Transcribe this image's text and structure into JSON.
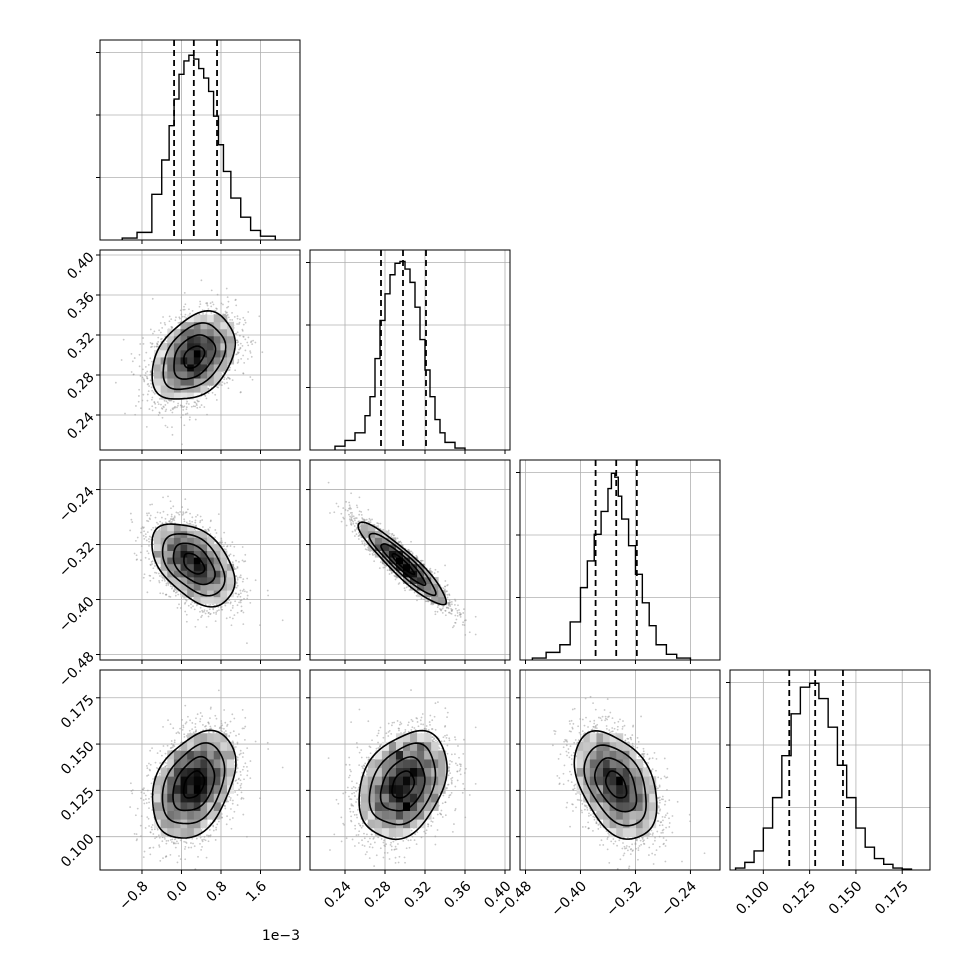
{
  "chart_data": {
    "type": "corner",
    "grid": true,
    "params": [
      {
        "ticks": [
          -0.8,
          0.0,
          0.8,
          1.6
        ],
        "tick_labels": [
          "−0.8",
          "0.0",
          "0.8",
          "1.6"
        ],
        "range": [
          -1.65,
          2.4
        ],
        "median": 0.25,
        "q16": -0.15,
        "q84": 0.72,
        "sigma": 0.42,
        "offset_text": "1e−3"
      },
      {
        "ticks": [
          0.24,
          0.28,
          0.32,
          0.36,
          0.4
        ],
        "tick_labels": [
          "0.24",
          "0.28",
          "0.32",
          "0.36",
          "0.40"
        ],
        "range": [
          0.205,
          0.405
        ],
        "median": 0.298,
        "q16": 0.276,
        "q84": 0.321,
        "sigma": 0.022
      },
      {
        "ticks": [
          -0.48,
          -0.4,
          -0.32,
          -0.24
        ],
        "tick_labels": [
          "−0.48",
          "−0.40",
          "−0.32",
          "−0.24"
        ],
        "range": [
          -0.488,
          -0.197
        ],
        "median": -0.348,
        "q16": -0.378,
        "q84": -0.318,
        "sigma": 0.03
      },
      {
        "ticks": [
          0.1,
          0.125,
          0.15,
          0.175
        ],
        "tick_labels": [
          "0.100",
          "0.125",
          "0.150",
          "0.175"
        ],
        "range": [
          0.082,
          0.19
        ],
        "median": 0.128,
        "q16": 0.114,
        "q84": 0.143,
        "sigma": 0.0145
      }
    ],
    "correlations": [
      {
        "pair": [
          1,
          0
        ],
        "rho": 0.35
      },
      {
        "pair": [
          2,
          0
        ],
        "rho": -0.45
      },
      {
        "pair": [
          2,
          1
        ],
        "rho": -0.92
      },
      {
        "pair": [
          3,
          0
        ],
        "rho": 0.35
      },
      {
        "pair": [
          3,
          1
        ],
        "rho": 0.3
      },
      {
        "pair": [
          3,
          2
        ],
        "rho": -0.4
      }
    ],
    "histograms": [
      {
        "param": 0,
        "bin_edges": [
          -1.2,
          -0.9,
          -0.6,
          -0.4,
          -0.25,
          -0.15,
          -0.05,
          0.05,
          0.15,
          0.25,
          0.35,
          0.45,
          0.55,
          0.65,
          0.75,
          0.85,
          1.0,
          1.2,
          1.4,
          1.6,
          1.9
        ],
        "counts": [
          0.01,
          0.04,
          0.24,
          0.42,
          0.6,
          0.74,
          0.87,
          0.94,
          0.97,
          0.95,
          0.9,
          0.85,
          0.78,
          0.65,
          0.5,
          0.36,
          0.22,
          0.12,
          0.05,
          0.02
        ]
      },
      {
        "param": 1,
        "bin_edges": [
          0.23,
          0.24,
          0.25,
          0.26,
          0.265,
          0.27,
          0.275,
          0.28,
          0.285,
          0.29,
          0.295,
          0.3,
          0.305,
          0.31,
          0.315,
          0.32,
          0.325,
          0.33,
          0.335,
          0.34,
          0.35,
          0.36
        ],
        "counts": [
          0.02,
          0.05,
          0.09,
          0.18,
          0.28,
          0.48,
          0.68,
          0.82,
          0.92,
          0.98,
          0.99,
          0.95,
          0.88,
          0.75,
          0.58,
          0.42,
          0.28,
          0.16,
          0.09,
          0.04,
          0.01
        ]
      },
      {
        "param": 2,
        "bin_edges": [
          -0.47,
          -0.45,
          -0.43,
          -0.415,
          -0.4,
          -0.39,
          -0.38,
          -0.37,
          -0.36,
          -0.355,
          -0.35,
          -0.345,
          -0.34,
          -0.33,
          -0.32,
          -0.31,
          -0.3,
          -0.29,
          -0.275,
          -0.26,
          -0.24
        ],
        "counts": [
          0.01,
          0.04,
          0.08,
          0.2,
          0.38,
          0.52,
          0.66,
          0.78,
          0.9,
          0.98,
          0.96,
          0.86,
          0.74,
          0.6,
          0.45,
          0.3,
          0.18,
          0.08,
          0.03,
          0.01
        ]
      },
      {
        "param": 3,
        "bin_edges": [
          0.085,
          0.09,
          0.095,
          0.1,
          0.105,
          0.11,
          0.115,
          0.12,
          0.125,
          0.13,
          0.135,
          0.14,
          0.145,
          0.15,
          0.155,
          0.16,
          0.165,
          0.17,
          0.175,
          0.18
        ],
        "counts": [
          0.01,
          0.04,
          0.1,
          0.22,
          0.38,
          0.6,
          0.82,
          0.96,
          0.98,
          0.9,
          0.75,
          0.55,
          0.38,
          0.22,
          0.12,
          0.06,
          0.03,
          0.01,
          0.005
        ]
      }
    ],
    "contour_levels_sigma": [
      0.5,
      1.0,
      1.5,
      2.0
    ]
  }
}
